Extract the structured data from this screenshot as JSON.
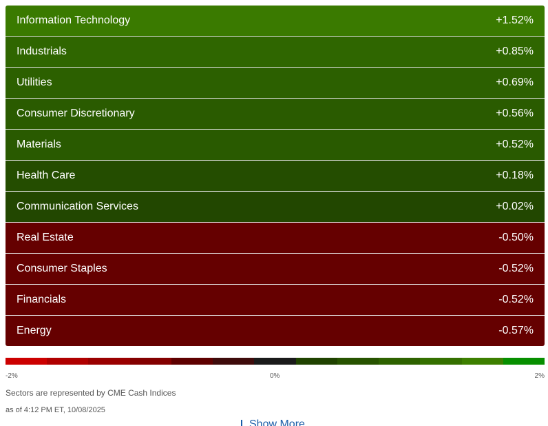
{
  "sectors": [
    {
      "name": "Information Technology",
      "change": "+1.52%",
      "color": "#3a7a00"
    },
    {
      "name": "Industrials",
      "change": "+0.85%",
      "color": "#2f6600"
    },
    {
      "name": "Utilities",
      "change": "+0.69%",
      "color": "#2c6000"
    },
    {
      "name": "Consumer Discretionary",
      "change": "+0.56%",
      "color": "#2a5b00"
    },
    {
      "name": "Materials",
      "change": "+0.52%",
      "color": "#295a00"
    },
    {
      "name": "Health Care",
      "change": "+0.18%",
      "color": "#244d00"
    },
    {
      "name": "Communication Services",
      "change": "+0.02%",
      "color": "#224700"
    },
    {
      "name": "Real Estate",
      "change": "-0.50%",
      "color": "#650000"
    },
    {
      "name": "Consumer Staples",
      "change": "-0.52%",
      "color": "#650000"
    },
    {
      "name": "Financials",
      "change": "-0.52%",
      "color": "#650000"
    },
    {
      "name": "Energy",
      "change": "-0.57%",
      "color": "#650000"
    }
  ],
  "scale": {
    "min_label": "-2%",
    "mid_label": "0%",
    "max_label": "2%",
    "colors": [
      "#cc0000",
      "#b00000",
      "#9a0000",
      "#830000",
      "#5e0000",
      "#3e0b0b",
      "#1a1a1a",
      "#1f4200",
      "#275300",
      "#2e6200",
      "#357000",
      "#3d7f00",
      "#078f00"
    ]
  },
  "footer": {
    "note": "Sectors are represented by CME Cash Indices",
    "as_of": "as of 4:12 PM ET, 10/08/2025",
    "show_more": "Show More"
  }
}
